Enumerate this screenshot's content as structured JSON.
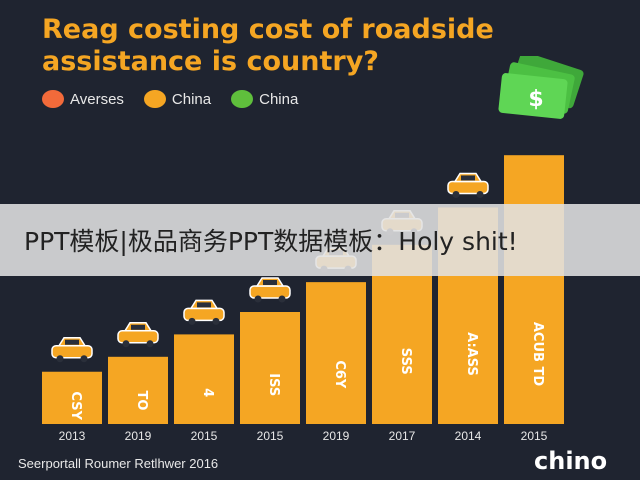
{
  "title": "Reag costing cost of roadside assistance is country?",
  "legend": [
    {
      "label": "Averses",
      "color": "#f26a3a"
    },
    {
      "label": "China",
      "color": "#f5a623"
    },
    {
      "label": "China",
      "color": "#5fbf3c"
    }
  ],
  "banner_text": "PPT模板|极品商务PPT数据模板：Holy shit!",
  "footer_text": "Seerportall Roumer Retlhwer 2016",
  "logo_text": "chino",
  "money_symbol": "$",
  "colors": {
    "bar": "#f5a623",
    "background": "#1f2430",
    "title": "#f5a623"
  },
  "icons": [
    "car-icon",
    "money-icon"
  ],
  "chart_data": {
    "type": "bar",
    "categories": [
      "2013",
      "2019",
      "2015",
      "2015",
      "2019",
      "2017",
      "2014",
      "2015"
    ],
    "values": [
      14,
      18,
      24,
      30,
      38,
      48,
      58,
      72
    ],
    "bar_labels": [
      "CSY",
      "TO",
      "4",
      "ISS",
      "C6Y",
      "SSS",
      "A:ASS",
      "ACUB TD"
    ],
    "ylim": [
      0,
      75
    ],
    "grid": false
  }
}
